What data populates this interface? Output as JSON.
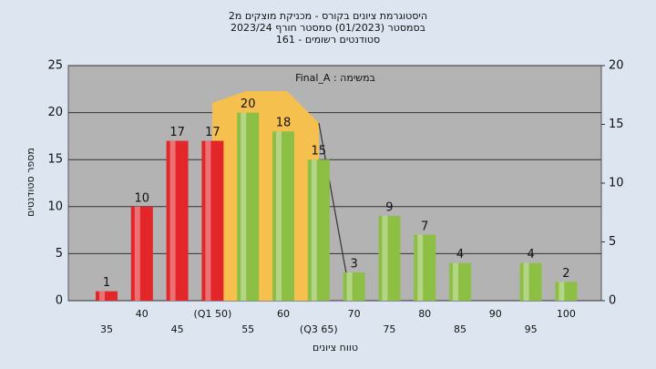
{
  "chart_data": {
    "type": "bar",
    "title": [
      "היסטוגרמת ציונים בקורס - מכניקת מוצקים מ2",
      "בסמסטר (01/2023)  סמסטר חורף 2023/24",
      "סטודנטים רשומים - 161"
    ],
    "annotation": "במשימה : Final_A",
    "xlabel": "טווח ציונים",
    "ylabel": "מספר סטודנטים",
    "categories": [
      "35",
      "40",
      "45",
      "(Q1 50)",
      "55",
      "60",
      "(Q3 65)",
      "70",
      "75",
      "80",
      "85",
      "90",
      "95",
      "100"
    ],
    "values": [
      1,
      10,
      17,
      17,
      20,
      18,
      15,
      3,
      9,
      7,
      4,
      null,
      4,
      2
    ],
    "colors": [
      "#e2262a",
      "#e2262a",
      "#e2262a",
      "#e2262a",
      "#8dbf45",
      "#8dbf45",
      "#8dbf45",
      "#8dbf45",
      "#8dbf45",
      "#8dbf45",
      "#8dbf45",
      "#8dbf45",
      "#8dbf45",
      "#8dbf45"
    ],
    "ylim": [
      0,
      25
    ],
    "yticks": [
      0,
      5,
      10,
      15,
      20,
      25
    ],
    "y2lim": [
      0,
      20
    ],
    "y2ticks": [
      0,
      5,
      10,
      15,
      20
    ],
    "grid": true
  }
}
